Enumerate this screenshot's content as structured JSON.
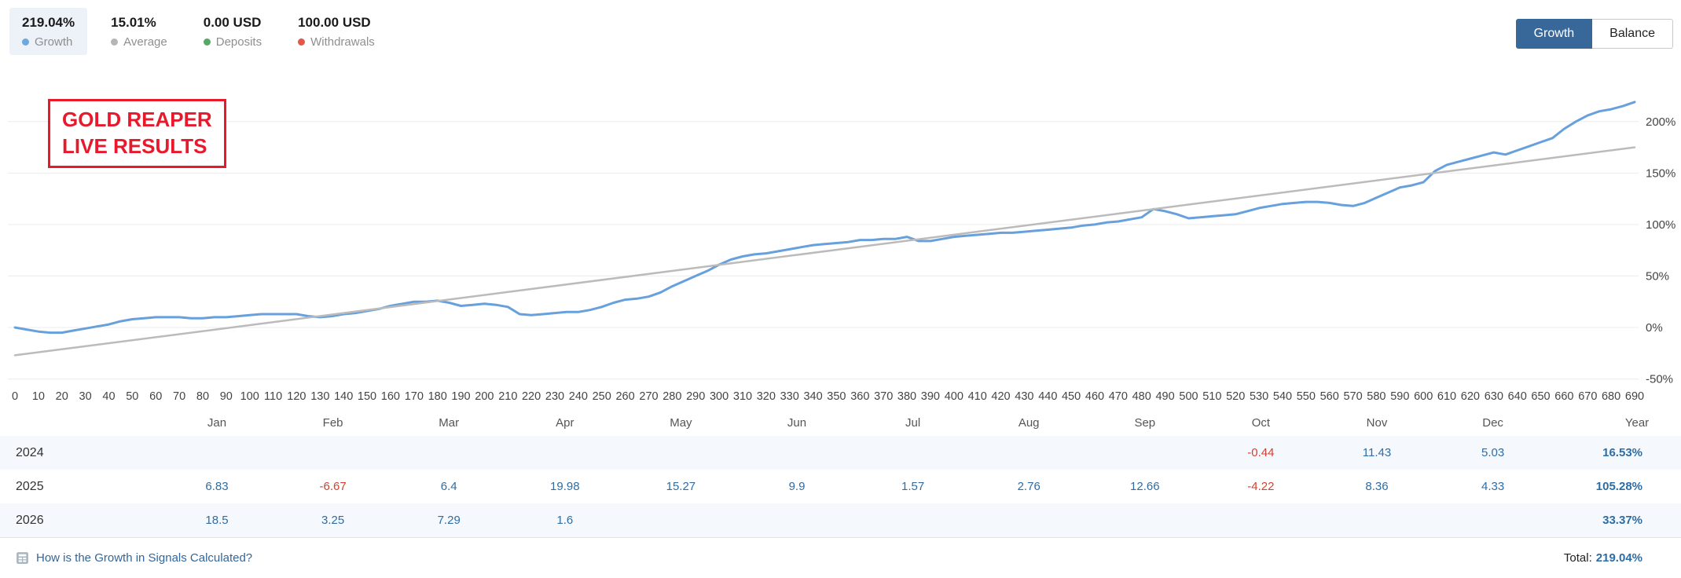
{
  "header": {
    "stats": [
      {
        "value": "219.04%",
        "label": "Growth",
        "dot_color": "#6da9dc",
        "active": true
      },
      {
        "value": "15.01%",
        "label": "Average",
        "dot_color": "#b5b5b5",
        "active": false
      },
      {
        "value": "0.00 USD",
        "label": "Deposits",
        "dot_color": "#55a868",
        "active": false
      },
      {
        "value": "100.00 USD",
        "label": "Withdrawals",
        "dot_color": "#e2574c",
        "active": false
      }
    ],
    "tabs": [
      {
        "label": "Growth",
        "active": true
      },
      {
        "label": "Balance",
        "active": false
      }
    ]
  },
  "overlay": {
    "text": "GOLD REAPER\nLIVE RESULTS"
  },
  "chart_data": {
    "type": "line",
    "title": "Signal growth curve (percent) versus number of trades",
    "xlabel": "",
    "ylabel": "",
    "xlim": [
      0,
      690
    ],
    "ylim": [
      -60,
      240
    ],
    "grid": "horizontal",
    "legend_position": "none",
    "x_ticks": [
      0,
      10,
      20,
      30,
      40,
      50,
      60,
      70,
      80,
      90,
      100,
      110,
      120,
      130,
      140,
      150,
      160,
      170,
      180,
      190,
      200,
      210,
      220,
      230,
      240,
      250,
      260,
      270,
      280,
      290,
      300,
      310,
      320,
      330,
      340,
      350,
      360,
      370,
      380,
      390,
      400,
      410,
      420,
      430,
      440,
      450,
      460,
      470,
      480,
      490,
      500,
      510,
      520,
      530,
      540,
      550,
      560,
      570,
      580,
      590,
      600,
      610,
      620,
      630,
      640,
      650,
      660,
      670,
      680,
      690
    ],
    "y_ticks": [
      -50,
      0,
      50,
      100,
      150,
      200
    ],
    "y_tick_labels": [
      "-50%",
      "0%",
      "50%",
      "100%",
      "150%",
      "200%"
    ],
    "series": [
      {
        "name": "Growth",
        "color": "#67a0dc",
        "points": [
          [
            0,
            0
          ],
          [
            5,
            -2
          ],
          [
            10,
            -4
          ],
          [
            15,
            -5
          ],
          [
            20,
            -5
          ],
          [
            25,
            -3
          ],
          [
            30,
            -1
          ],
          [
            35,
            1
          ],
          [
            40,
            3
          ],
          [
            45,
            6
          ],
          [
            50,
            8
          ],
          [
            55,
            9
          ],
          [
            60,
            10
          ],
          [
            65,
            10
          ],
          [
            70,
            10
          ],
          [
            75,
            9
          ],
          [
            80,
            9
          ],
          [
            85,
            10
          ],
          [
            90,
            10
          ],
          [
            95,
            11
          ],
          [
            100,
            12
          ],
          [
            105,
            13
          ],
          [
            110,
            13
          ],
          [
            115,
            13
          ],
          [
            120,
            13
          ],
          [
            125,
            11
          ],
          [
            130,
            10
          ],
          [
            135,
            11
          ],
          [
            140,
            13
          ],
          [
            145,
            14
          ],
          [
            150,
            16
          ],
          [
            155,
            18
          ],
          [
            160,
            21
          ],
          [
            165,
            23
          ],
          [
            170,
            25
          ],
          [
            175,
            25
          ],
          [
            180,
            26
          ],
          [
            185,
            24
          ],
          [
            190,
            21
          ],
          [
            195,
            22
          ],
          [
            200,
            23
          ],
          [
            205,
            22
          ],
          [
            210,
            20
          ],
          [
            215,
            13
          ],
          [
            220,
            12
          ],
          [
            225,
            13
          ],
          [
            230,
            14
          ],
          [
            235,
            15
          ],
          [
            240,
            15
          ],
          [
            245,
            17
          ],
          [
            250,
            20
          ],
          [
            255,
            24
          ],
          [
            260,
            27
          ],
          [
            265,
            28
          ],
          [
            270,
            30
          ],
          [
            275,
            34
          ],
          [
            280,
            40
          ],
          [
            285,
            45
          ],
          [
            290,
            50
          ],
          [
            295,
            55
          ],
          [
            300,
            61
          ],
          [
            305,
            66
          ],
          [
            310,
            69
          ],
          [
            315,
            71
          ],
          [
            320,
            72
          ],
          [
            325,
            74
          ],
          [
            330,
            76
          ],
          [
            335,
            78
          ],
          [
            340,
            80
          ],
          [
            345,
            81
          ],
          [
            350,
            82
          ],
          [
            355,
            83
          ],
          [
            360,
            85
          ],
          [
            365,
            85
          ],
          [
            370,
            86
          ],
          [
            375,
            86
          ],
          [
            380,
            88
          ],
          [
            385,
            84
          ],
          [
            390,
            84
          ],
          [
            395,
            86
          ],
          [
            400,
            88
          ],
          [
            405,
            89
          ],
          [
            410,
            90
          ],
          [
            415,
            91
          ],
          [
            420,
            92
          ],
          [
            425,
            92
          ],
          [
            430,
            93
          ],
          [
            435,
            94
          ],
          [
            440,
            95
          ],
          [
            445,
            96
          ],
          [
            450,
            97
          ],
          [
            455,
            99
          ],
          [
            460,
            100
          ],
          [
            465,
            102
          ],
          [
            470,
            103
          ],
          [
            475,
            105
          ],
          [
            480,
            107
          ],
          [
            485,
            115
          ],
          [
            490,
            113
          ],
          [
            495,
            110
          ],
          [
            500,
            106
          ],
          [
            505,
            107
          ],
          [
            510,
            108
          ],
          [
            515,
            109
          ],
          [
            520,
            110
          ],
          [
            525,
            113
          ],
          [
            530,
            116
          ],
          [
            535,
            118
          ],
          [
            540,
            120
          ],
          [
            545,
            121
          ],
          [
            550,
            122
          ],
          [
            555,
            122
          ],
          [
            560,
            121
          ],
          [
            565,
            119
          ],
          [
            570,
            118
          ],
          [
            575,
            121
          ],
          [
            580,
            126
          ],
          [
            585,
            131
          ],
          [
            590,
            136
          ],
          [
            595,
            138
          ],
          [
            600,
            141
          ],
          [
            605,
            152
          ],
          [
            610,
            158
          ],
          [
            615,
            161
          ],
          [
            620,
            164
          ],
          [
            625,
            167
          ],
          [
            630,
            170
          ],
          [
            635,
            168
          ],
          [
            640,
            172
          ],
          [
            645,
            176
          ],
          [
            650,
            180
          ],
          [
            655,
            184
          ],
          [
            660,
            193
          ],
          [
            665,
            200
          ],
          [
            670,
            206
          ],
          [
            675,
            210
          ],
          [
            680,
            212
          ],
          [
            685,
            215
          ],
          [
            690,
            219
          ]
        ]
      },
      {
        "name": "Trend",
        "color": "#bbbbbb",
        "points": [
          [
            0,
            -27
          ],
          [
            690,
            175
          ]
        ]
      }
    ]
  },
  "table": {
    "months": [
      "Jan",
      "Feb",
      "Mar",
      "Apr",
      "May",
      "Jun",
      "Jul",
      "Aug",
      "Sep",
      "Oct",
      "Nov",
      "Dec"
    ],
    "year_col": "Year",
    "rows": [
      {
        "year": "2024",
        "values": [
          "",
          "",
          "",
          "",
          "",
          "",
          "",
          "",
          "",
          "-0.44",
          "11.43",
          "5.03"
        ],
        "total": "16.53%"
      },
      {
        "year": "2025",
        "values": [
          "6.83",
          "-6.67",
          "6.4",
          "19.98",
          "15.27",
          "9.9",
          "1.57",
          "2.76",
          "12.66",
          "-4.22",
          "8.36",
          "4.33"
        ],
        "total": "105.28%"
      },
      {
        "year": "2026",
        "values": [
          "18.5",
          "3.25",
          "7.29",
          "1.6",
          "",
          "",
          "",
          "",
          "",
          "",
          "",
          ""
        ],
        "total": "33.37%"
      }
    ]
  },
  "footer": {
    "help_link": "How is the Growth in Signals Calculated?",
    "total_label": "Total:",
    "total_value": "219.04%"
  },
  "colors": {
    "positive_value": "#2e6da4",
    "negative_value": "#cf4332",
    "active_tab": "#38689a",
    "growth_line": "#67a0dc",
    "trend_line": "#bbbbbb",
    "annotation_red": "#e8192c"
  }
}
